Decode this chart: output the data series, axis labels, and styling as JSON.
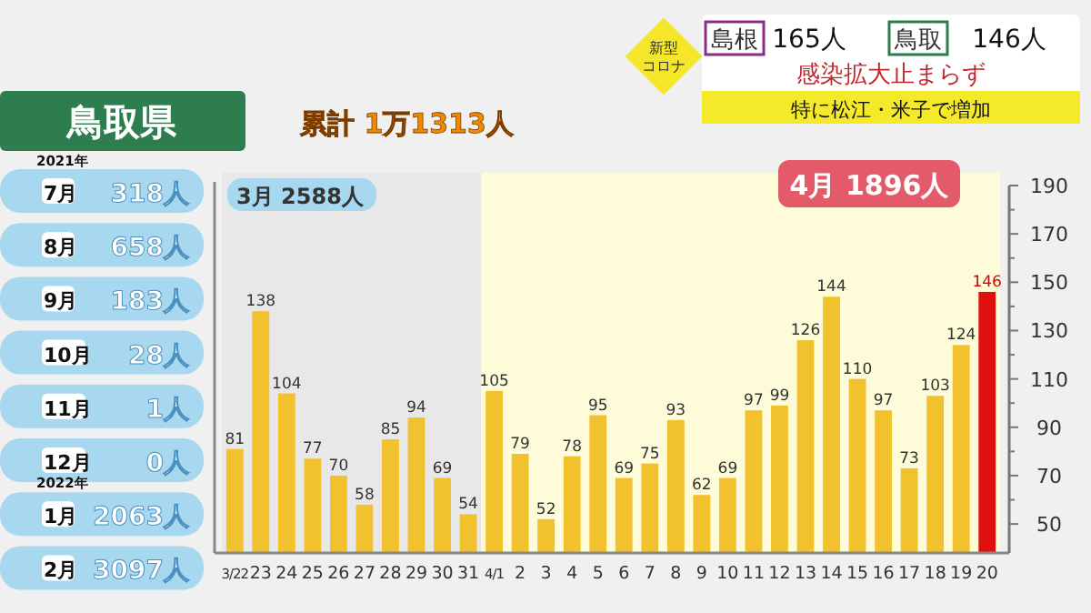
{
  "chart_data": {
    "type": "bar",
    "title": "鳥取県",
    "subtitle": "累計 1万1313人",
    "categories": [
      "3/22",
      "23",
      "24",
      "25",
      "26",
      "27",
      "28",
      "29",
      "30",
      "31",
      "4/1",
      "2",
      "3",
      "4",
      "5",
      "6",
      "7",
      "8",
      "9",
      "10",
      "11",
      "12",
      "13",
      "14",
      "15",
      "16",
      "17",
      "18",
      "19",
      "20"
    ],
    "values": [
      81,
      138,
      104,
      77,
      70,
      58,
      85,
      94,
      69,
      54,
      105,
      79,
      52,
      78,
      95,
      69,
      75,
      93,
      62,
      69,
      97,
      99,
      126,
      144,
      110,
      97,
      73,
      103,
      124,
      146
    ],
    "colors": [
      "#f2c12e",
      "#f2c12e",
      "#f2c12e",
      "#f2c12e",
      "#f2c12e",
      "#f2c12e",
      "#f2c12e",
      "#f2c12e",
      "#f2c12e",
      "#f2c12e",
      "#f2c12e",
      "#f2c12e",
      "#f2c12e",
      "#f2c12e",
      "#f2c12e",
      "#f2c12e",
      "#f2c12e",
      "#f2c12e",
      "#f2c12e",
      "#f2c12e",
      "#f2c12e",
      "#f2c12e",
      "#f2c12e",
      "#f2c12e",
      "#f2c12e",
      "#f2c12e",
      "#f2c12e",
      "#f2c12e",
      "#f2c12e",
      "#e0100f"
    ],
    "data_labels": true,
    "ylim": [
      38,
      190
    ],
    "yticks": [
      50,
      {
        "value": 60,
        "label": null
      },
      70,
      {
        "value": 80,
        "label": null
      },
      90,
      {
        "value": 100,
        "label": null
      },
      110,
      {
        "value": 120,
        "label": null
      },
      130,
      {
        "value": 140,
        "label": null
      },
      150,
      {
        "value": 160,
        "label": null
      },
      170,
      {
        "value": 180,
        "label": null
      },
      190
    ],
    "bands": [
      {
        "axis": "x",
        "from": "3/22",
        "to": "31",
        "label": "3月 2588人",
        "color": "#e8e8e8"
      },
      {
        "axis": "x",
        "from": "4/1",
        "to": "20",
        "label": "4月 1896人",
        "color": "#fdfbd8"
      }
    ],
    "annotations": [
      "新型コロナ",
      "島根",
      "165人",
      "鳥取",
      "146人",
      "感染拡大止まらず",
      "特に松江・米子で増加",
      "2021年",
      "7月",
      "318人",
      "8月",
      "658人",
      "9月",
      "183人",
      "10月",
      "28人",
      "11月",
      "1人",
      "12月",
      "0人",
      "2022年",
      "1月",
      "2063人",
      "2月",
      "3097人"
    ]
  }
}
